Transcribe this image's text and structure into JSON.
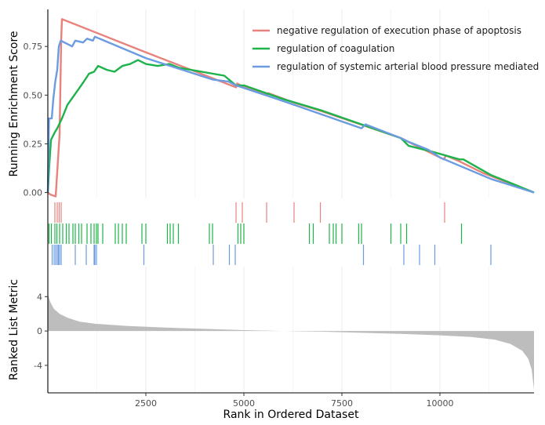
{
  "chart_data": {
    "type": "gsea",
    "x_label": "Rank in Ordered Dataset",
    "x_range": [
      0,
      12400
    ],
    "x_ticks": [
      2500,
      5000,
      7500,
      10000
    ],
    "x_tick_labels": [
      "2500",
      "5000",
      "7500",
      "10000"
    ],
    "grid": true,
    "legend_position": "top-right",
    "panels": {
      "enrichment": {
        "ylabel": "Running Enrichment Score",
        "ylim": [
          -0.03,
          0.94
        ],
        "y_ticks": [
          0.0,
          0.25,
          0.5,
          0.75
        ],
        "y_tick_labels": [
          "0.00",
          "0.25",
          "0.50",
          "0.75"
        ]
      },
      "ranked": {
        "ylabel": "Ranked List Metric",
        "ylim": [
          -7.2,
          7.5
        ],
        "y_ticks": [
          4,
          0,
          -4
        ],
        "y_tick_labels": [
          "4",
          "0",
          "-4"
        ],
        "metric_color": "#bdbdbd",
        "metric_profile": [
          [
            0,
            4.3
          ],
          [
            60,
            3.4
          ],
          [
            150,
            2.6
          ],
          [
            300,
            2.0
          ],
          [
            500,
            1.55
          ],
          [
            800,
            1.1
          ],
          [
            1200,
            0.85
          ],
          [
            2000,
            0.6
          ],
          [
            3000,
            0.4
          ],
          [
            4000,
            0.25
          ],
          [
            5000,
            0.1
          ],
          [
            6000,
            0.0
          ],
          [
            7000,
            -0.08
          ],
          [
            8000,
            -0.2
          ],
          [
            9000,
            -0.33
          ],
          [
            10000,
            -0.5
          ],
          [
            10800,
            -0.7
          ],
          [
            11400,
            -1.0
          ],
          [
            11800,
            -1.5
          ],
          [
            12100,
            -2.3
          ],
          [
            12250,
            -3.2
          ],
          [
            12340,
            -4.5
          ],
          [
            12400,
            -6.8
          ]
        ]
      }
    },
    "series": [
      {
        "name": "negative regulation of execution phase of apoptosis",
        "color": "#e8827c",
        "points": [
          [
            0,
            0.0
          ],
          [
            60,
            -0.01
          ],
          [
            200,
            -0.02
          ],
          [
            300,
            0.3
          ],
          [
            340,
            0.78
          ],
          [
            360,
            0.89
          ],
          [
            2500,
            0.72
          ],
          [
            4800,
            0.54
          ],
          [
            4830,
            0.56
          ],
          [
            5000,
            0.54
          ],
          [
            5600,
            0.5
          ],
          [
            5620,
            0.51
          ],
          [
            6300,
            0.46
          ],
          [
            6950,
            0.42
          ],
          [
            9000,
            0.28
          ],
          [
            10100,
            0.17
          ],
          [
            10150,
            0.19
          ],
          [
            10500,
            0.16
          ],
          [
            11100,
            0.1
          ],
          [
            12400,
            0.0
          ]
        ],
        "hits": [
          180,
          240,
          290,
          340,
          4800,
          4960,
          5580,
          6280,
          6950,
          10120
        ]
      },
      {
        "name": "regulation of coagulation",
        "color": "#1db34a",
        "points": [
          [
            0,
            0.0
          ],
          [
            40,
            0.15
          ],
          [
            80,
            0.27
          ],
          [
            180,
            0.31
          ],
          [
            240,
            0.33
          ],
          [
            360,
            0.38
          ],
          [
            500,
            0.45
          ],
          [
            640,
            0.49
          ],
          [
            780,
            0.53
          ],
          [
            920,
            0.57
          ],
          [
            1050,
            0.61
          ],
          [
            1180,
            0.62
          ],
          [
            1280,
            0.65
          ],
          [
            1500,
            0.63
          ],
          [
            1700,
            0.62
          ],
          [
            1900,
            0.65
          ],
          [
            2100,
            0.66
          ],
          [
            2300,
            0.68
          ],
          [
            2500,
            0.66
          ],
          [
            2800,
            0.65
          ],
          [
            3100,
            0.66
          ],
          [
            3350,
            0.64
          ],
          [
            4500,
            0.6
          ],
          [
            4800,
            0.55
          ],
          [
            5000,
            0.55
          ],
          [
            6000,
            0.48
          ],
          [
            7000,
            0.42
          ],
          [
            8000,
            0.35
          ],
          [
            9000,
            0.28
          ],
          [
            9200,
            0.24
          ],
          [
            9800,
            0.21
          ],
          [
            10500,
            0.17
          ],
          [
            10600,
            0.17
          ],
          [
            11300,
            0.09
          ],
          [
            12400,
            0.0
          ]
        ],
        "hits": [
          30,
          90,
          180,
          230,
          300,
          380,
          470,
          540,
          640,
          700,
          790,
          860,
          1000,
          1100,
          1180,
          1240,
          1280,
          1400,
          1720,
          1800,
          1900,
          2000,
          2400,
          2500,
          3050,
          3120,
          3200,
          3330,
          4120,
          4200,
          4850,
          4920,
          5000,
          6670,
          6770,
          7180,
          7280,
          7350,
          7500,
          7930,
          8000,
          8750,
          9000,
          9150,
          10550
        ]
      },
      {
        "name": "regulation of systemic arterial blood pressure mediated by a chemical signal",
        "color": "#6b9be0",
        "points": [
          [
            0,
            0.0
          ],
          [
            30,
            0.38
          ],
          [
            100,
            0.38
          ],
          [
            140,
            0.48
          ],
          [
            190,
            0.57
          ],
          [
            240,
            0.63
          ],
          [
            280,
            0.75
          ],
          [
            330,
            0.78
          ],
          [
            620,
            0.75
          ],
          [
            700,
            0.78
          ],
          [
            900,
            0.77
          ],
          [
            1000,
            0.79
          ],
          [
            1150,
            0.78
          ],
          [
            1200,
            0.8
          ],
          [
            2500,
            0.69
          ],
          [
            4200,
            0.58
          ],
          [
            4600,
            0.57
          ],
          [
            4800,
            0.55
          ],
          [
            6000,
            0.47
          ],
          [
            8000,
            0.33
          ],
          [
            8100,
            0.35
          ],
          [
            9000,
            0.28
          ],
          [
            9200,
            0.26
          ],
          [
            9700,
            0.22
          ],
          [
            10000,
            0.18
          ],
          [
            11300,
            0.07
          ],
          [
            12400,
            0.0
          ]
        ],
        "hits": [
          110,
          160,
          200,
          240,
          270,
          300,
          340,
          700,
          980,
          1180,
          1200,
          1240,
          2450,
          4220,
          4630,
          4780,
          8050,
          9080,
          9480,
          9870,
          11300
        ]
      }
    ]
  }
}
